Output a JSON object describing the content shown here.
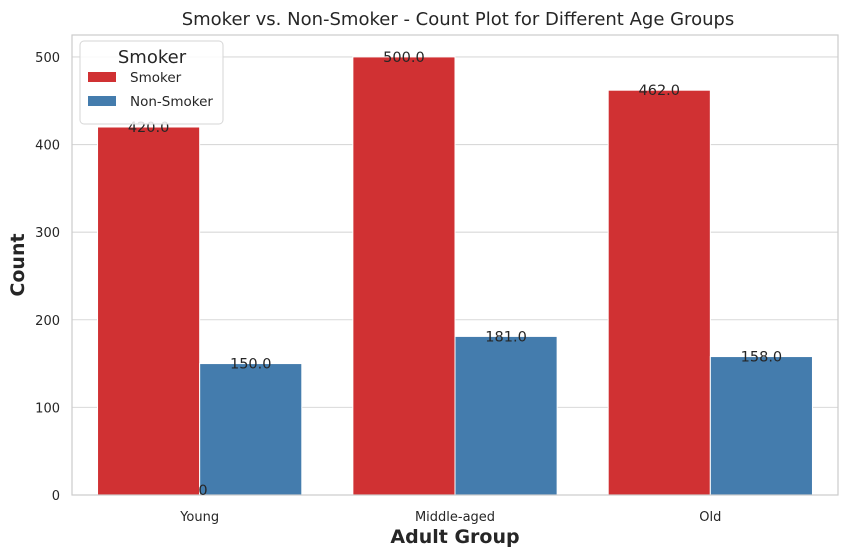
{
  "chart_data": {
    "type": "bar",
    "title": "Smoker vs. Non-Smoker - Count Plot for Different Age Groups",
    "xlabel": "Adult Group",
    "ylabel": "Count",
    "categories": [
      "Young",
      "Middle-aged",
      "Old"
    ],
    "series": [
      {
        "name": "Smoker",
        "values": [
          420,
          500,
          462
        ],
        "labels": [
          "420.0",
          "500.0",
          "462.0"
        ],
        "color": "#d03133"
      },
      {
        "name": "Non-Smoker",
        "values": [
          150,
          181,
          158
        ],
        "labels": [
          "150.0",
          "181.0",
          "158.0"
        ],
        "color": "#447cad"
      }
    ],
    "extra_annotation": "0",
    "ylim": [
      0,
      525
    ],
    "yticks": [
      0,
      100,
      200,
      300,
      400,
      500
    ],
    "ytick_labels": [
      "0",
      "100",
      "200",
      "300",
      "400",
      "500"
    ],
    "grid": true,
    "legend": {
      "title": "Smoker",
      "placement": "top-left"
    }
  }
}
